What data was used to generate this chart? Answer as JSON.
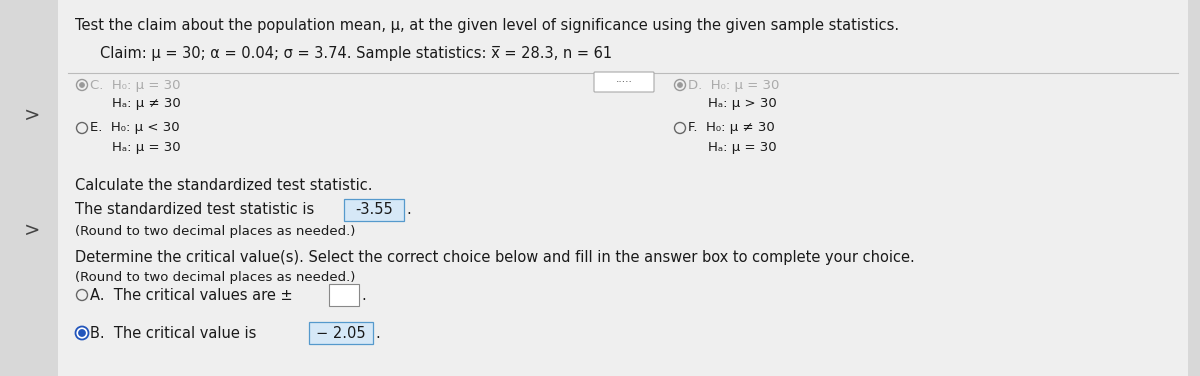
{
  "title": "Test the claim about the population mean, μ, at the given level of significance using the given sample statistics.",
  "claim_line": "Claim: μ = 30; α = 0.04; σ = 3.74. Sample statistics: x̅ = 28.3, n = 61",
  "bg_color": "#d8d8d8",
  "panel_color": "#efefef",
  "text_color": "#1a1a1a",
  "dim_color": "#aaaaaa",
  "option_C_h0": "H₀: μ = 30",
  "option_C_ha": "Hₐ: μ ≠ 30",
  "option_D_h0": "H₀: μ = 30",
  "option_D_ha": "Hₐ: μ > 30",
  "option_E_h0": "H₀: μ < 30",
  "option_E_ha": "Hₐ: μ = 30",
  "option_F_h0": "H₀: μ ≠ 30",
  "option_F_ha": "Hₐ: μ = 30",
  "calc_label": "Calculate the standardized test statistic.",
  "stat_line": "The standardized test statistic is",
  "stat_value": "-3.55",
  "round_note": "(Round to two decimal places as needed.)",
  "det_label": "Determine the critical value(s). Select the correct choice below and fill in the answer box to complete your choice.",
  "round_note2": "(Round to two decimal places as needed.)",
  "optA_label": "A.",
  "optA_text": "The critical values are ±",
  "optB_label": "B.",
  "optB_text": "The critical value is",
  "optB_value": "− 2.05",
  "nav_arrow": ">",
  "sep_color": "#bbbbbb",
  "box_fill": "#d6e8f7",
  "box_edge": "#5599cc",
  "radio_edge": "#666666",
  "radio_sel_fill": "#2255bb",
  "radio_sel_edge": "#2255bb"
}
